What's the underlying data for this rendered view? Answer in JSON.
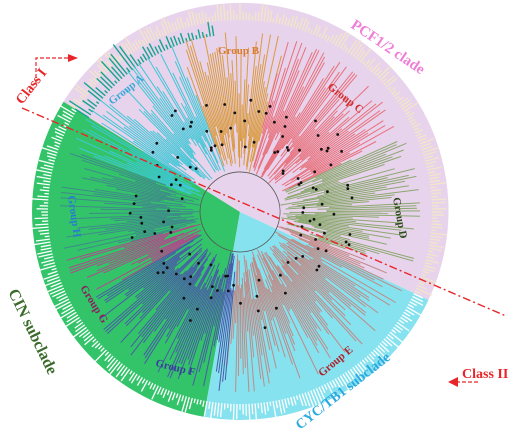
{
  "clades": {
    "pcf": {
      "label": "PCF1/2 clade",
      "color": "#f07fd7",
      "fill": "#e8d3ec"
    },
    "cin": {
      "label": "CIN subclade",
      "color": "#3a6b2a",
      "fill": "#33c46a"
    },
    "cyc": {
      "label": "CYC/TB1 subclade",
      "color": "#29a9e0",
      "fill": "#86e2ef"
    }
  },
  "classes": {
    "one": {
      "label": "Class I",
      "color": "#e8262a"
    },
    "two": {
      "label": "Class II",
      "color": "#e8262a"
    }
  },
  "groups": [
    {
      "id": "a",
      "label": "Group A",
      "color": "#3fc7d6",
      "text_color": "#3aa8d8"
    },
    {
      "id": "b",
      "label": "Group B",
      "color": "#d99a3f",
      "text_color": "#d97b2a"
    },
    {
      "id": "c",
      "label": "Group C",
      "color": "#e8707a",
      "text_color": "#d02a2a"
    },
    {
      "id": "d",
      "label": "Group D",
      "color": "#8aa86e",
      "text_color": "#2f4a1e"
    },
    {
      "id": "e",
      "label": "Group E",
      "color": "#c08a86",
      "text_color": "#b0202a"
    },
    {
      "id": "f",
      "label": "Group F",
      "color": "#4a5aa8",
      "text_color": "#3a3aa0"
    },
    {
      "id": "g",
      "label": "Group G",
      "color": "#b04a8a",
      "text_color": "#8a2060"
    },
    {
      "id": "h",
      "label": "Group H",
      "color": "#3f8a8a",
      "text_color": "#2a7ad0"
    }
  ]
}
